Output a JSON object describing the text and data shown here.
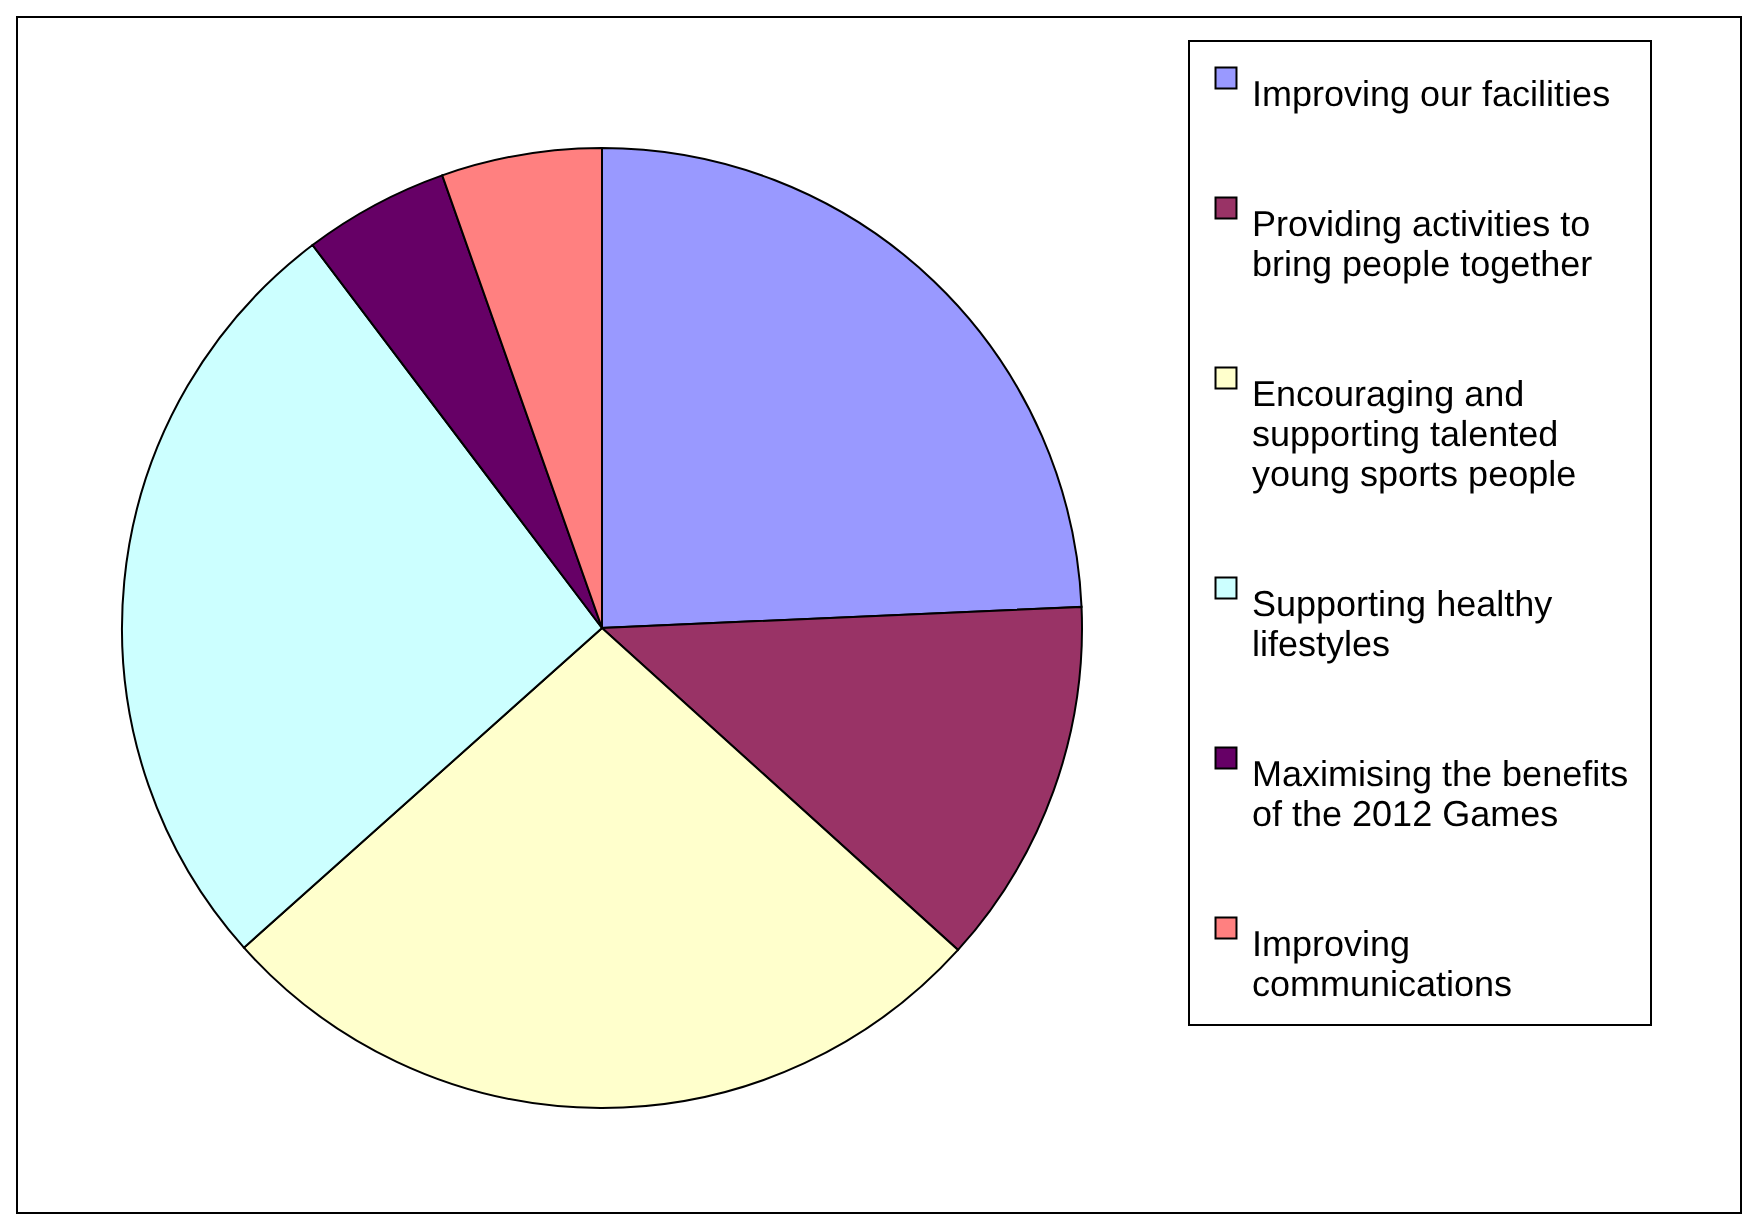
{
  "chart_data": {
    "type": "pie",
    "categories": [
      "Improving our facilities",
      "Providing activities to bring people together",
      "Encouraging and supporting talented young sports people",
      "Supporting healthy lifestyles",
      "Maximising the benefits of the 2012 Games",
      "Improving communications"
    ],
    "values": [
      24.3,
      12.4,
      26.7,
      26.3,
      4.9,
      5.4
    ],
    "colors": [
      "#9999ff",
      "#993366",
      "#ffffcc",
      "#ccffff",
      "#660066",
      "#ff8080"
    ],
    "legend": "right"
  }
}
